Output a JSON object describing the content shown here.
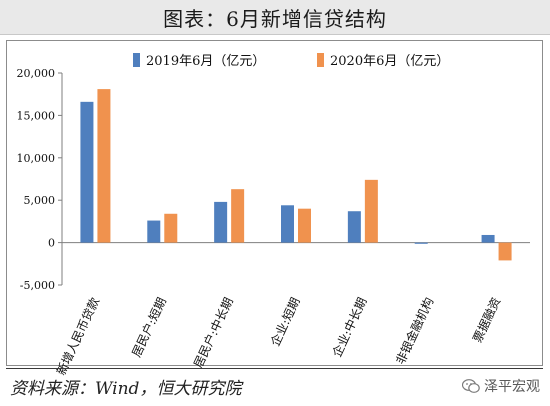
{
  "header": {
    "title": "图表：6月新增信贷结构"
  },
  "footer": {
    "source": "资料来源：Wind，恒大研究院",
    "watermark": "泽平宏观"
  },
  "chart_data": {
    "type": "bar",
    "title": "图表：6月新增信贷结构",
    "categories": [
      "新增人民币贷款",
      "居民户:短期",
      "居民户:中长期",
      "企业:短期",
      "企业:中长期",
      "非银金融机构",
      "票据融资"
    ],
    "series": [
      {
        "name": "2019年6月（亿元）",
        "color": "#4f7fbe",
        "values": [
          16600,
          2600,
          4800,
          4400,
          3700,
          -100,
          900
        ]
      },
      {
        "name": "2020年6月（亿元）",
        "color": "#f0924e",
        "values": [
          18100,
          3400,
          6300,
          4000,
          7400,
          0,
          -2100
        ]
      }
    ],
    "yticks": [
      "20,000",
      "15,000",
      "10,000",
      "5,000",
      "0",
      "-5,000"
    ],
    "ylim": [
      -5000,
      20000
    ],
    "legend": "top",
    "grid": false
  }
}
